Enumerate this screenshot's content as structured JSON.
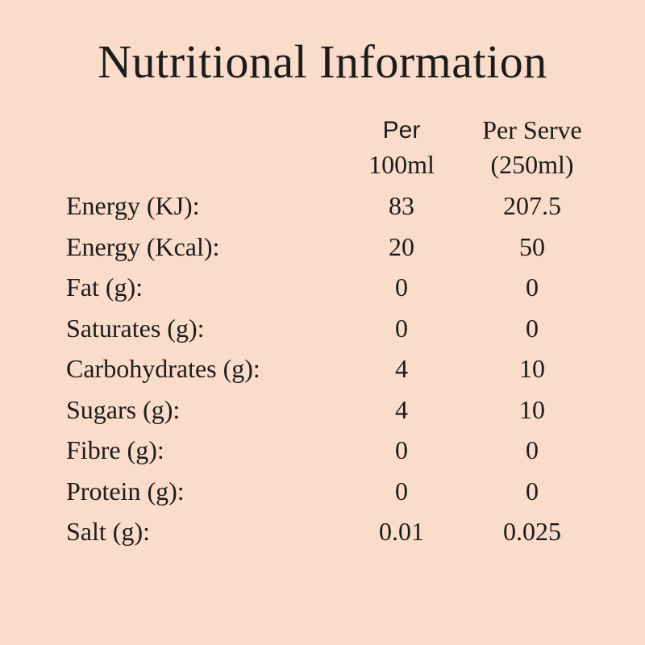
{
  "title": "Nutritional Information",
  "colors": {
    "background": "#f9dcca",
    "text": "#1d1c1a"
  },
  "table": {
    "columns": [
      {
        "line1": "Per",
        "line2": "100ml"
      },
      {
        "line1": "Per Serve",
        "line2": "(250ml)"
      }
    ],
    "rows": [
      {
        "label": "Energy (KJ):",
        "per_100ml": "83",
        "per_serve": "207.5"
      },
      {
        "label": "Energy (Kcal):",
        "per_100ml": "20",
        "per_serve": "50"
      },
      {
        "label": "Fat (g):",
        "per_100ml": "0",
        "per_serve": "0"
      },
      {
        "label": "Saturates (g):",
        "per_100ml": "0",
        "per_serve": "0"
      },
      {
        "label": "Carbohydrates (g):",
        "per_100ml": "4",
        "per_serve": "10"
      },
      {
        "label": "Sugars (g):",
        "per_100ml": "4",
        "per_serve": "10"
      },
      {
        "label": "Fibre (g):",
        "per_100ml": "0",
        "per_serve": "0"
      },
      {
        "label": "Protein (g):",
        "per_100ml": "0",
        "per_serve": "0"
      },
      {
        "label": "Salt (g):",
        "per_100ml": "0.01",
        "per_serve": "0.025"
      }
    ]
  }
}
